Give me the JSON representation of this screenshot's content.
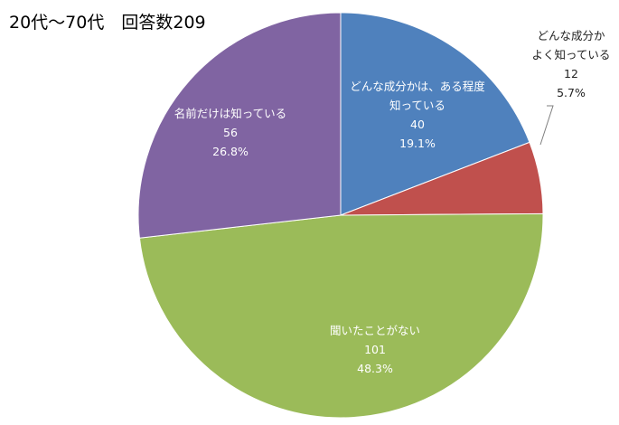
{
  "chart_data": {
    "type": "pie",
    "title": "20代～70代　回答数209",
    "slices": [
      {
        "label_lines": [
          "どんな成分かは、ある程度",
          "知っている"
        ],
        "value": 40,
        "percent": "19.1%",
        "color": "#4f81bd"
      },
      {
        "label_lines": [
          "どんな成分か",
          "よく知っている"
        ],
        "value": 12,
        "percent": "5.7%",
        "color": "#c0504d"
      },
      {
        "label_lines": [
          "聞いたことがない"
        ],
        "value": 101,
        "percent": "48.3%",
        "color": "#9bbb59"
      },
      {
        "label_lines": [
          "名前だけは知っている"
        ],
        "value": 56,
        "percent": "26.8%",
        "color": "#8064a2"
      }
    ],
    "start_angle_deg": 0,
    "direction": "clockwise",
    "data_labels": "category, value, percentage",
    "legend": "none"
  }
}
